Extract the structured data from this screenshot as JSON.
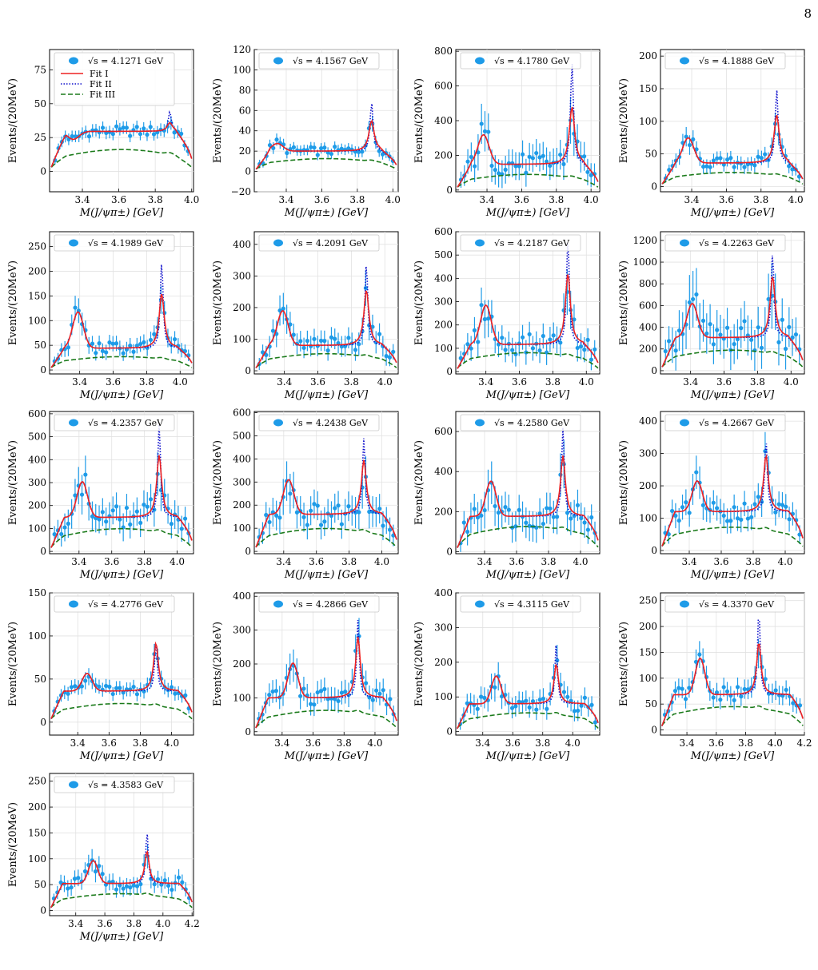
{
  "page_number": "8",
  "chart_data": {
    "type": "scatter",
    "xlabel": "M(J/ψπ±) [GeV]",
    "ylabel": "Events/(20MeV)",
    "series_legend": [
      "Fit I",
      "Fit II",
      "Fit III"
    ],
    "colors": {
      "data": "#1e9be8",
      "fit1": "#ee2222",
      "fit2": "#1010cc",
      "fit3": "#1a7a1a"
    },
    "panels": [
      {
        "energy": "√s = 4.1271 GeV",
        "show_fit_legend": true,
        "ylim": [
          -15,
          90
        ],
        "yticks": [
          0,
          25,
          50,
          75
        ],
        "ytick_labels": [
          "0",
          "25",
          "50",
          "75"
        ],
        "xlim": [
          3.22,
          4.01
        ],
        "xticks": [
          3.4,
          3.6,
          3.8,
          4.0
        ],
        "xtick_labels": [
          "3.4",
          "3.6",
          "3.8",
          "4.0"
        ],
        "peaks": {
          "p1": 3.35,
          "p2": 3.88,
          "h1": 20,
          "h2": 36,
          "plateau": 37,
          "spike": 44,
          "bg": 18
        }
      },
      {
        "energy": "√s = 4.1567 GeV",
        "show_fit_legend": false,
        "ylim": [
          -20,
          120
        ],
        "yticks": [
          -20,
          0,
          20,
          40,
          60,
          80,
          100,
          120
        ],
        "ytick_labels": [
          "−20",
          "0",
          "20",
          "40",
          "60",
          "80",
          "100",
          "120"
        ],
        "xlim": [
          3.22,
          4.03
        ],
        "xticks": [
          3.4,
          3.6,
          3.8,
          4.0
        ],
        "xtick_labels": [
          "3.4",
          "3.6",
          "3.8",
          "4.0"
        ],
        "peaks": {
          "p1": 3.35,
          "p2": 3.88,
          "h1": 25,
          "h2": 50,
          "plateau": 25,
          "spike": 68,
          "bg": 14
        }
      },
      {
        "energy": "√s = 4.1780 GeV",
        "show_fit_legend": false,
        "ylim": [
          -10,
          810
        ],
        "yticks": [
          0,
          200,
          400,
          600,
          800
        ],
        "ytick_labels": [
          "0",
          "200",
          "400",
          "600",
          "800"
        ],
        "xlim": [
          3.22,
          4.05
        ],
        "xticks": [
          3.4,
          3.6,
          3.8,
          4.0
        ],
        "xtick_labels": [
          "3.4",
          "3.6",
          "3.8",
          "4.0"
        ],
        "peaks": {
          "p1": 3.38,
          "p2": 3.89,
          "h1": 300,
          "h2": 480,
          "plateau": 185,
          "spike": 740,
          "bg": 100
        }
      },
      {
        "energy": "√s = 4.1888 GeV",
        "show_fit_legend": false,
        "ylim": [
          -8,
          210
        ],
        "yticks": [
          0,
          50,
          100,
          150,
          200
        ],
        "ytick_labels": [
          "0",
          "50",
          "100",
          "150",
          "200"
        ],
        "xlim": [
          3.22,
          4.05
        ],
        "xticks": [
          3.4,
          3.6,
          3.8,
          4.0
        ],
        "xtick_labels": [
          "3.4",
          "3.6",
          "3.8",
          "4.0"
        ],
        "peaks": {
          "p1": 3.38,
          "p2": 3.89,
          "h1": 70,
          "h2": 110,
          "plateau": 45,
          "spike": 150,
          "bg": 24
        }
      },
      {
        "energy": "√s = 4.1989 GeV",
        "show_fit_legend": false,
        "ylim": [
          -8,
          280
        ],
        "yticks": [
          0,
          50,
          100,
          150,
          200,
          250
        ],
        "ytick_labels": [
          "0",
          "50",
          "100",
          "150",
          "200",
          "250"
        ],
        "xlim": [
          3.22,
          4.08
        ],
        "xticks": [
          3.4,
          3.6,
          3.8,
          4.0
        ],
        "xtick_labels": [
          "3.4",
          "3.6",
          "3.8",
          "4.0"
        ],
        "peaks": {
          "p1": 3.39,
          "p2": 3.89,
          "h1": 112,
          "h2": 155,
          "plateau": 55,
          "spike": 220,
          "bg": 30
        }
      },
      {
        "energy": "√s = 4.2091 GeV",
        "show_fit_legend": false,
        "ylim": [
          -10,
          440
        ],
        "yticks": [
          0,
          100,
          200,
          300,
          400
        ],
        "ytick_labels": [
          "0",
          "100",
          "200",
          "300",
          "400"
        ],
        "xlim": [
          3.22,
          4.08
        ],
        "xticks": [
          3.4,
          3.6,
          3.8,
          4.0
        ],
        "xtick_labels": [
          "3.4",
          "3.6",
          "3.8",
          "4.0"
        ],
        "peaks": {
          "p1": 3.39,
          "p2": 3.89,
          "h1": 180,
          "h2": 255,
          "plateau": 100,
          "spike": 340,
          "bg": 60
        }
      },
      {
        "energy": "√s = 4.2187 GeV",
        "show_fit_legend": false,
        "ylim": [
          -10,
          600
        ],
        "yticks": [
          0,
          100,
          200,
          300,
          400,
          500,
          600
        ],
        "ytick_labels": [
          "0",
          "100",
          "200",
          "300",
          "400",
          "500",
          "600"
        ],
        "xlim": [
          3.22,
          4.08
        ],
        "xticks": [
          3.4,
          3.6,
          3.8,
          4.0
        ],
        "xtick_labels": [
          "3.4",
          "3.6",
          "3.8",
          "4.0"
        ],
        "peaks": {
          "p1": 3.4,
          "p2": 3.89,
          "h1": 270,
          "h2": 420,
          "plateau": 145,
          "spike": 570,
          "bg": 90
        }
      },
      {
        "energy": "√s = 4.2263 GeV",
        "show_fit_legend": false,
        "ylim": [
          -30,
          1280
        ],
        "yticks": [
          0,
          200,
          400,
          600,
          800,
          1000,
          1200
        ],
        "ytick_labels": [
          "0",
          "200",
          "400",
          "600",
          "800",
          "1000",
          "1200"
        ],
        "xlim": [
          3.22,
          4.08
        ],
        "xticks": [
          3.4,
          3.6,
          3.8,
          4.0
        ],
        "xtick_labels": [
          "3.4",
          "3.6",
          "3.8",
          "4.0"
        ],
        "peaks": {
          "p1": 3.41,
          "p2": 3.89,
          "h1": 580,
          "h2": 870,
          "plateau": 380,
          "spike": 1090,
          "bg": 210
        }
      },
      {
        "energy": "√s = 4.2357 GeV",
        "show_fit_legend": false,
        "ylim": [
          -10,
          610
        ],
        "yticks": [
          0,
          100,
          200,
          300,
          400,
          500,
          600
        ],
        "ytick_labels": [
          "0",
          "100",
          "200",
          "300",
          "400",
          "500",
          "600"
        ],
        "xlim": [
          3.22,
          4.1
        ],
        "xticks": [
          3.4,
          3.6,
          3.8,
          4.0
        ],
        "xtick_labels": [
          "3.4",
          "3.6",
          "3.8",
          "4.0"
        ],
        "peaks": {
          "p1": 3.42,
          "p2": 3.89,
          "h1": 285,
          "h2": 420,
          "plateau": 185,
          "spike": 560,
          "bg": 110
        }
      },
      {
        "energy": "√s = 4.2438 GeV",
        "show_fit_legend": false,
        "ylim": [
          -10,
          605
        ],
        "yticks": [
          0,
          100,
          200,
          300,
          400,
          500,
          600
        ],
        "ytick_labels": [
          "0",
          "100",
          "200",
          "300",
          "400",
          "500",
          "600"
        ],
        "xlim": [
          3.22,
          4.1
        ],
        "xticks": [
          3.4,
          3.6,
          3.8,
          4.0
        ],
        "xtick_labels": [
          "3.4",
          "3.6",
          "3.8",
          "4.0"
        ],
        "peaks": {
          "p1": 3.43,
          "p2": 3.89,
          "h1": 290,
          "h2": 395,
          "plateau": 200,
          "spike": 490,
          "bg": 110
        }
      },
      {
        "energy": "√s = 4.2580 GeV",
        "show_fit_legend": false,
        "ylim": [
          -10,
          700
        ],
        "yticks": [
          0,
          200,
          400,
          600
        ],
        "ytick_labels": [
          "0",
          "200",
          "400",
          "600"
        ],
        "xlim": [
          3.22,
          4.12
        ],
        "xticks": [
          3.4,
          3.6,
          3.8,
          4.0
        ],
        "xtick_labels": [
          "3.4",
          "3.6",
          "3.8",
          "4.0"
        ],
        "peaks": {
          "p1": 3.44,
          "p2": 3.89,
          "h1": 330,
          "h2": 480,
          "plateau": 220,
          "spike": 620,
          "bg": 140
        }
      },
      {
        "energy": "√s = 4.2667 GeV",
        "show_fit_legend": false,
        "ylim": [
          -10,
          430
        ],
        "yticks": [
          0,
          100,
          200,
          300,
          400
        ],
        "ytick_labels": [
          "0",
          "100",
          "200",
          "300",
          "400"
        ],
        "xlim": [
          3.22,
          4.12
        ],
        "xticks": [
          3.4,
          3.6,
          3.8,
          4.0
        ],
        "xtick_labels": [
          "3.4",
          "3.6",
          "3.8",
          "4.0"
        ],
        "peaks": {
          "p1": 3.45,
          "p2": 3.88,
          "h1": 200,
          "h2": 295,
          "plateau": 150,
          "spike": 345,
          "bg": 80
        }
      },
      {
        "energy": "√s = 4.2776 GeV",
        "show_fit_legend": false,
        "ylim": [
          -15,
          150
        ],
        "yticks": [
          0,
          50,
          100,
          150
        ],
        "ytick_labels": [
          "0",
          "50",
          "100",
          "150"
        ],
        "xlim": [
          3.22,
          4.14
        ],
        "xticks": [
          3.4,
          3.6,
          3.8,
          4.0
        ],
        "xtick_labels": [
          "3.4",
          "3.6",
          "3.8",
          "4.0"
        ],
        "peaks": {
          "p1": 3.46,
          "p2": 3.9,
          "h1": 52,
          "h2": 92,
          "plateau": 45,
          "spike": 95,
          "bg": 24
        }
      },
      {
        "energy": "√s = 4.2866 GeV",
        "show_fit_legend": false,
        "ylim": [
          -10,
          410
        ],
        "yticks": [
          0,
          100,
          200,
          300,
          400
        ],
        "ytick_labels": [
          "0",
          "100",
          "200",
          "300",
          "400"
        ],
        "xlim": [
          3.22,
          4.15
        ],
        "xticks": [
          3.4,
          3.6,
          3.8,
          4.0
        ],
        "xtick_labels": [
          "3.4",
          "3.6",
          "3.8",
          "4.0"
        ],
        "peaks": {
          "p1": 3.47,
          "p2": 3.89,
          "h1": 190,
          "h2": 280,
          "plateau": 125,
          "spike": 330,
          "bg": 70
        }
      },
      {
        "energy": "√s = 4.3115 GeV",
        "show_fit_legend": false,
        "ylim": [
          -10,
          400
        ],
        "yticks": [
          0,
          100,
          200,
          300,
          400
        ],
        "ytick_labels": [
          "0",
          "100",
          "200",
          "300",
          "400"
        ],
        "xlim": [
          3.22,
          4.18
        ],
        "xticks": [
          3.4,
          3.6,
          3.8,
          4.0
        ],
        "xtick_labels": [
          "3.4",
          "3.6",
          "3.8",
          "4.0"
        ],
        "peaks": {
          "p1": 3.49,
          "p2": 3.89,
          "h1": 150,
          "h2": 195,
          "plateau": 100,
          "spike": 255,
          "bg": 60
        }
      },
      {
        "energy": "√s = 4.3370 GeV",
        "show_fit_legend": false,
        "ylim": [
          -10,
          265
        ],
        "yticks": [
          0,
          50,
          100,
          150,
          200,
          250
        ],
        "ytick_labels": [
          "0",
          "50",
          "100",
          "150",
          "200",
          "250"
        ],
        "xlim": [
          3.22,
          4.2
        ],
        "xticks": [
          3.4,
          3.6,
          3.8,
          4.0,
          4.2
        ],
        "xtick_labels": [
          "3.4",
          "3.6",
          "3.8",
          "4.0",
          "4.2"
        ],
        "peaks": {
          "p1": 3.49,
          "p2": 3.89,
          "h1": 130,
          "h2": 170,
          "plateau": 85,
          "spike": 235,
          "bg": 50
        }
      },
      {
        "energy": "√s = 4.3583 GeV",
        "show_fit_legend": false,
        "ylim": [
          -10,
          265
        ],
        "yticks": [
          0,
          50,
          100,
          150,
          200,
          250
        ],
        "ytick_labels": [
          "0",
          "50",
          "100",
          "150",
          "200",
          "250"
        ],
        "xlim": [
          3.22,
          4.21
        ],
        "xticks": [
          3.4,
          3.6,
          3.8,
          4.0,
          4.2
        ],
        "xtick_labels": [
          "3.4",
          "3.6",
          "3.8",
          "4.0",
          "4.2"
        ],
        "peaks": {
          "p1": 3.52,
          "p2": 3.89,
          "h1": 90,
          "h2": 115,
          "plateau": 65,
          "spike": 155,
          "bg": 36
        }
      }
    ]
  }
}
